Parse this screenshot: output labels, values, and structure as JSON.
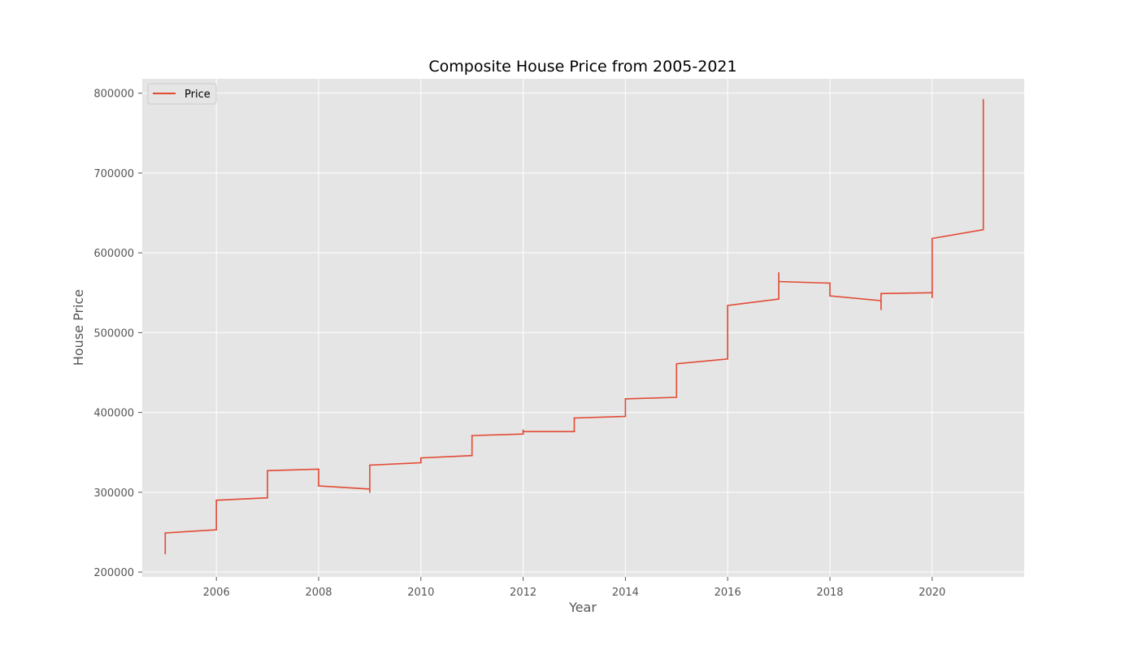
{
  "chart_data": {
    "type": "line",
    "title": "Composite House Price from 2005-2021",
    "xlabel": "Year",
    "ylabel": "House Price",
    "xlim": [
      2004.55,
      2021.8
    ],
    "ylim": [
      194000,
      818000
    ],
    "xticks": [
      2006,
      2008,
      2010,
      2012,
      2014,
      2016,
      2018,
      2020
    ],
    "yticks": [
      200000,
      300000,
      400000,
      500000,
      600000,
      700000,
      800000
    ],
    "grid": true,
    "legend": {
      "placement": "top-left",
      "entries": [
        "Price"
      ]
    },
    "series": [
      {
        "name": "Price",
        "color": "#E24A33",
        "x": [
          2005,
          2005,
          2006,
          2006,
          2007,
          2007,
          2008,
          2008,
          2009,
          2009,
          2009,
          2010,
          2010,
          2011,
          2011,
          2012,
          2012,
          2012,
          2013,
          2013,
          2014,
          2014,
          2015,
          2015,
          2016,
          2016,
          2017,
          2017,
          2017,
          2018,
          2018,
          2019,
          2019,
          2019,
          2020,
          2020,
          2020,
          2021,
          2021
        ],
        "y": [
          223000,
          249000,
          253000,
          290000,
          293000,
          327000,
          329000,
          308000,
          304000,
          300000,
          334000,
          337000,
          343000,
          346000,
          371000,
          373000,
          378000,
          376000,
          376000,
          393000,
          395000,
          417000,
          419000,
          461000,
          467000,
          534000,
          542000,
          575000,
          564000,
          562000,
          546000,
          540000,
          529000,
          549000,
          550000,
          544000,
          618000,
          629000,
          792000
        ]
      }
    ]
  }
}
